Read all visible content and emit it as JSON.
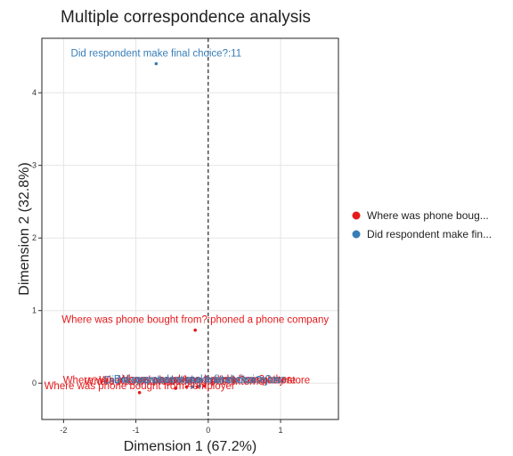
{
  "chart_data": {
    "type": "scatter",
    "title": "Multiple correspondence analysis",
    "xlabel": "Dimension 1 (67.2%)",
    "ylabel": "Dimension 2 (32.8%)",
    "xlim": [
      -2.3,
      1.8
    ],
    "ylim": [
      -0.5,
      4.75
    ],
    "xticks": [
      -2,
      -1,
      0,
      1
    ],
    "yticks": [
      0,
      1,
      2,
      3,
      4
    ],
    "xtick_labels": [
      "-2",
      "-1",
      "0",
      "1"
    ],
    "ytick_labels": [
      "0",
      "1",
      "2",
      "3",
      "4"
    ],
    "grid": true,
    "zero_line_x": 0,
    "legend": {
      "position": "right",
      "entries": [
        {
          "label": "Where was phone boug...",
          "color": "#e41a1c"
        },
        {
          "label": "Did respondent make fin...",
          "color": "#377eb8"
        }
      ]
    },
    "series": [
      {
        "name": "Where was phone boug...",
        "color": "#e41a1c",
        "points": [
          {
            "x": -0.18,
            "y": 0.73,
            "label": "Where was phone bought from?:phoned a phone company"
          },
          {
            "x": -0.95,
            "y": -0.13,
            "label": "Where was phone bought from?:employer"
          },
          {
            "x": -0.45,
            "y": -0.07,
            "label": "Where was phone bought from?:internet"
          },
          {
            "x": -0.3,
            "y": -0.05,
            "label": "Where was phone bought from?:phone company store"
          },
          {
            "x": -0.15,
            "y": -0.05,
            "label": "Where was phone bought from?:retail store"
          },
          {
            "x": -0.05,
            "y": -0.04,
            "label": "Where was phone bought from?:other"
          }
        ]
      },
      {
        "name": "Did respondent make fin...",
        "color": "#377eb8",
        "points": [
          {
            "x": -0.72,
            "y": 4.4,
            "label": "Did respondent make final choice?:11"
          },
          {
            "x": -0.22,
            "y": -0.05,
            "label": "Did respondent make final choice?:yes"
          },
          {
            "x": -0.12,
            "y": -0.04,
            "label": "Did respondent make final choice?:no"
          }
        ]
      }
    ]
  }
}
